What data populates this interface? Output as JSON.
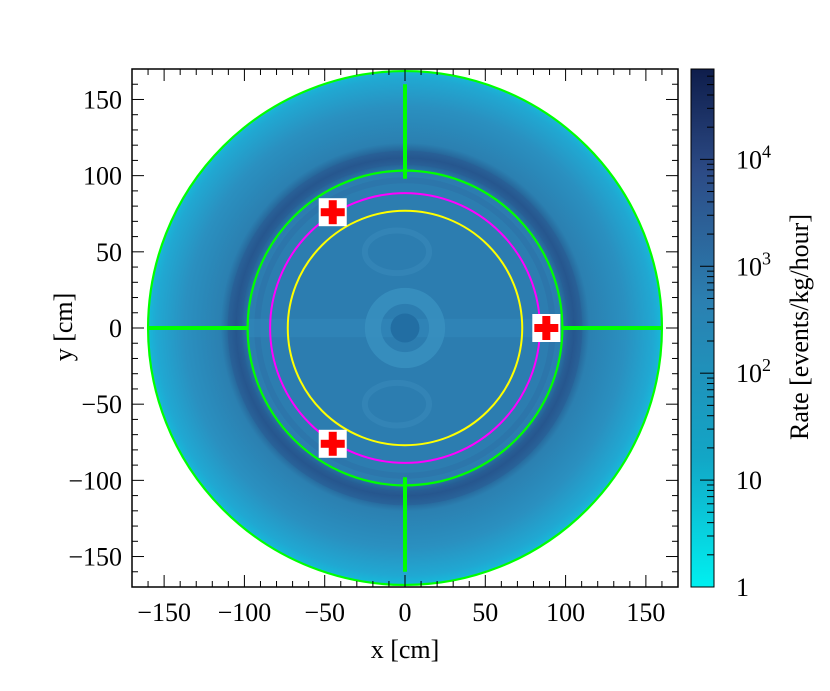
{
  "chart_data": {
    "type": "heatmap",
    "xlabel": "x [cm]",
    "ylabel": "y [cm]",
    "zlabel": "Rate [events/kg/hour]",
    "xlim": [
      -170,
      170
    ],
    "ylim": [
      -170,
      170
    ],
    "zscale": "log",
    "zlim": [
      1,
      70000
    ],
    "grid": false,
    "x_ticks": [
      {
        "value": -150,
        "label": "−150"
      },
      {
        "value": -100,
        "label": "−100"
      },
      {
        "value": -50,
        "label": "−50"
      },
      {
        "value": 0,
        "label": "0"
      },
      {
        "value": 50,
        "label": "50"
      },
      {
        "value": 100,
        "label": "100"
      },
      {
        "value": 150,
        "label": "150"
      }
    ],
    "y_ticks": [
      {
        "value": 150,
        "label": "150"
      },
      {
        "value": 100,
        "label": "100"
      },
      {
        "value": 50,
        "label": "50"
      },
      {
        "value": 0,
        "label": "0"
      },
      {
        "value": -50,
        "label": "−50"
      },
      {
        "value": -100,
        "label": "−100"
      },
      {
        "value": -150,
        "label": "−150"
      }
    ],
    "z_ticks": [
      {
        "value": 1,
        "label": "1"
      },
      {
        "value": 10,
        "label": "10"
      },
      {
        "value": 100,
        "label": "10",
        "exp": "2"
      },
      {
        "value": 1000,
        "label": "10",
        "exp": "3"
      },
      {
        "value": 10000,
        "label": "10",
        "exp": "4"
      }
    ],
    "colormap": [
      "#00f0f0",
      "#12a6c6",
      "#2b80b1",
      "#2c4b86",
      "#0e1d4b"
    ],
    "regions": [
      {
        "name": "outer-shield-annulus",
        "r_inner": 98,
        "r_outer": 160,
        "rate": 150
      },
      {
        "name": "outer-shield-inner-band",
        "r_inner": 98,
        "r_outer": 115,
        "rate": 600
      },
      {
        "name": "inner-cryostat-disk",
        "r_inner": 0,
        "r_outer": 98,
        "rate": 400
      },
      {
        "name": "detector-ring",
        "r_inner": 15,
        "r_outer": 25,
        "rate": 700
      }
    ],
    "circles": [
      {
        "name": "outer-boundary",
        "r": 160,
        "color": "#00ff00"
      },
      {
        "name": "inner-boundary",
        "r": 98,
        "color": "#00ff00"
      },
      {
        "name": "magenta-fiducial",
        "r": 84,
        "color": "#ff00ff"
      },
      {
        "name": "yellow-fiducial",
        "r": 73,
        "color": "#ffff00"
      }
    ],
    "support_bars_color": "#00ff00",
    "markers": [
      {
        "x": -45,
        "y": 76,
        "color": "#ff0000",
        "symbol": "cross"
      },
      {
        "x": 88,
        "y": 0,
        "color": "#ff0000",
        "symbol": "cross"
      },
      {
        "x": -45,
        "y": -76,
        "color": "#ff0000",
        "symbol": "cross"
      }
    ]
  }
}
